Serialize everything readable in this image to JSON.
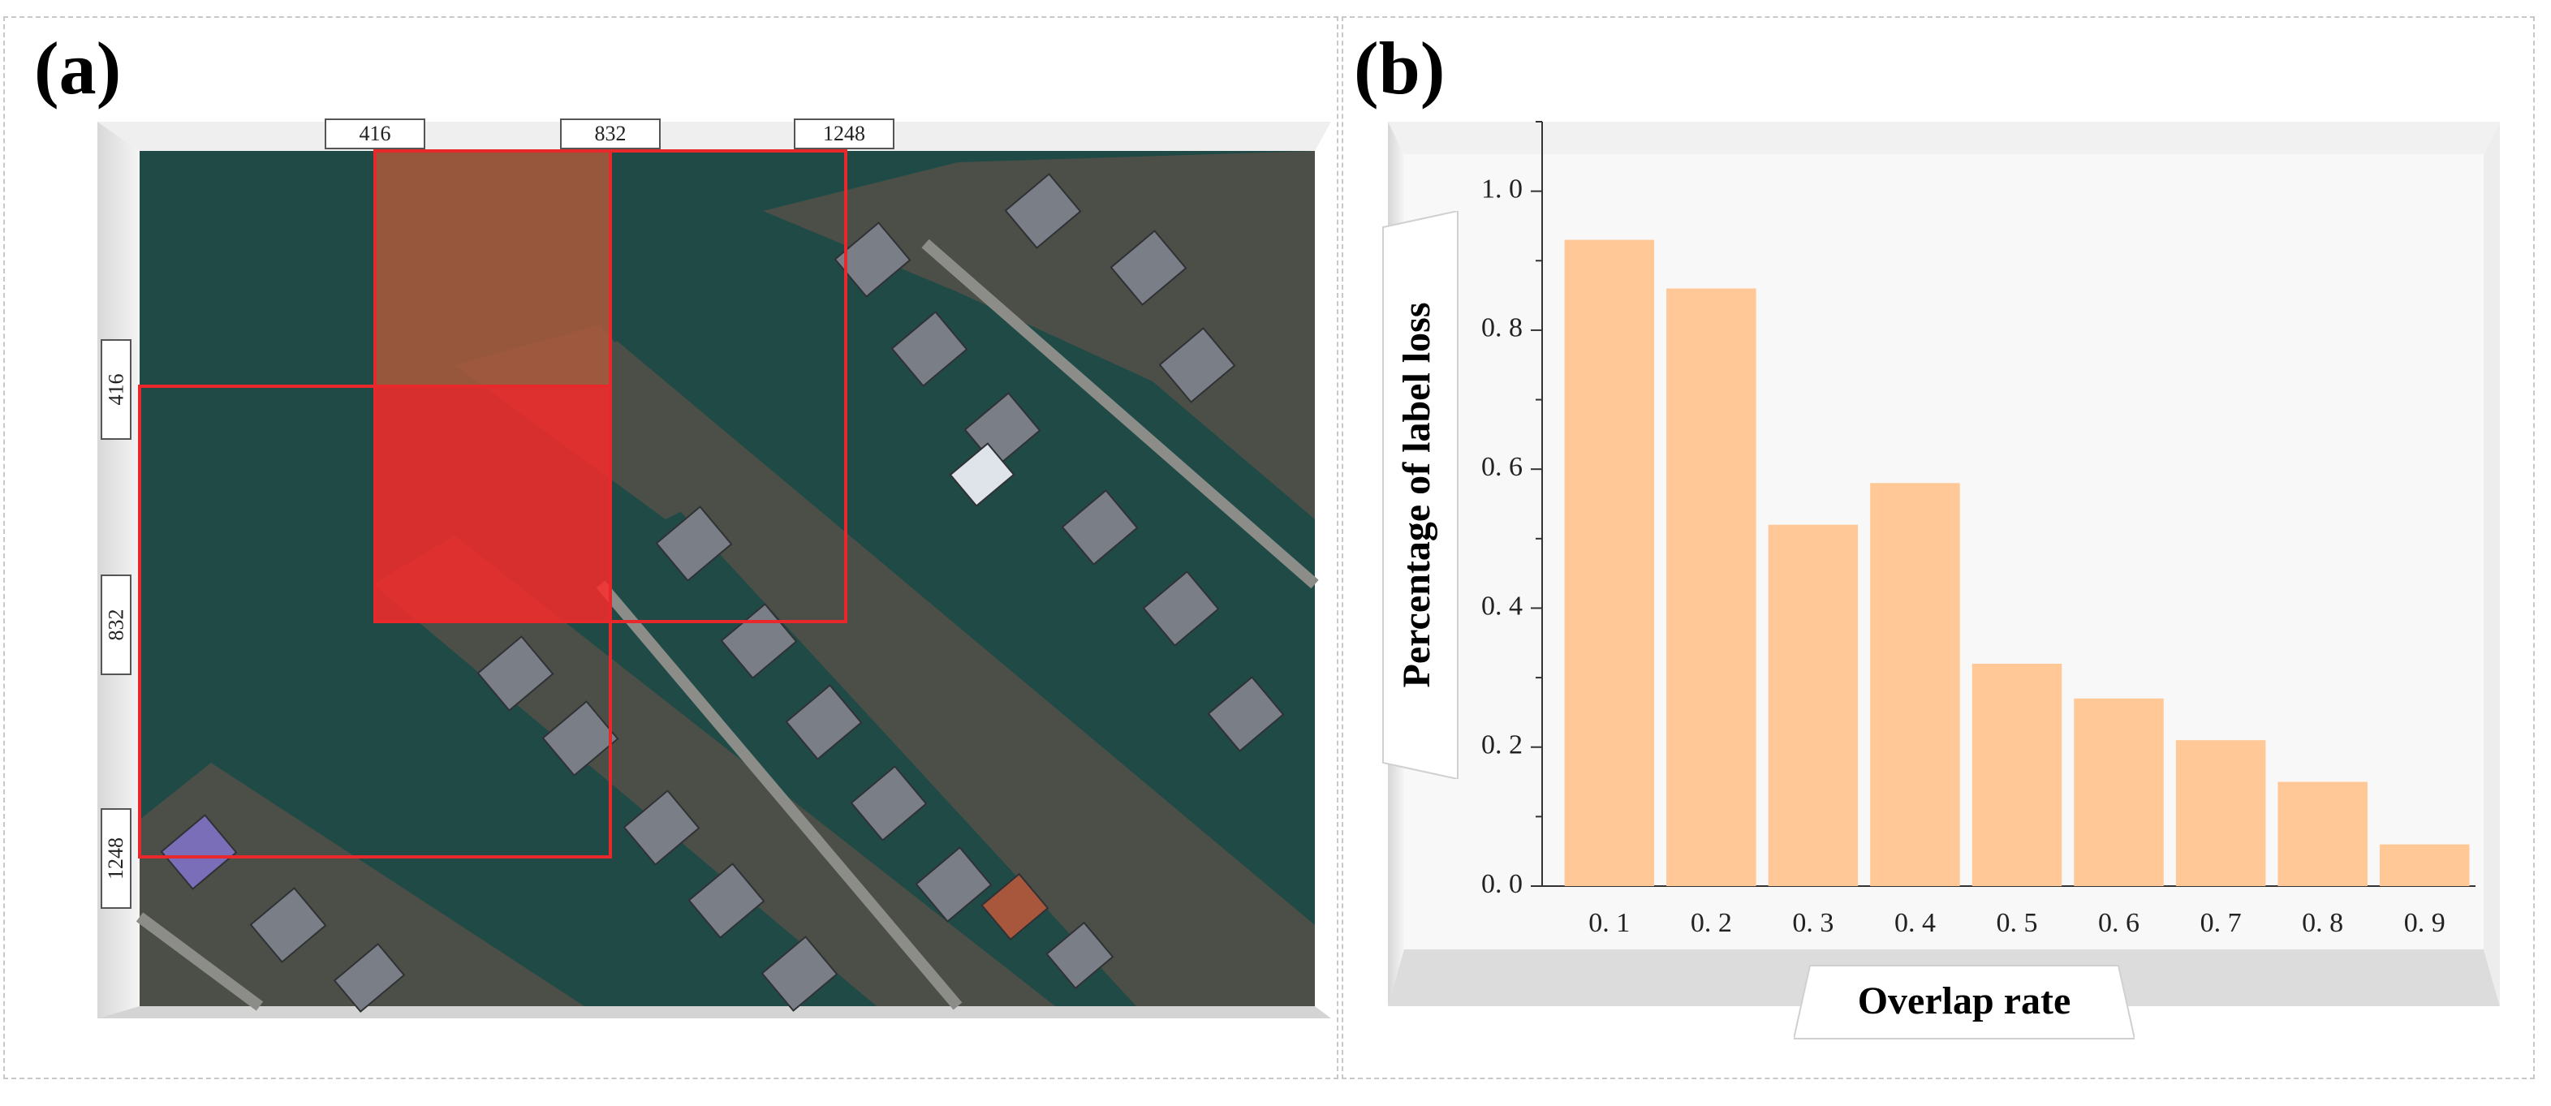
{
  "panels": {
    "a": {
      "letter": "(a)"
    },
    "b": {
      "letter": "(b)"
    }
  },
  "map": {
    "ruler_top": [
      "416",
      "832",
      "1248"
    ],
    "ruler_left": [
      "416",
      "832",
      "1248"
    ],
    "colors": {
      "water": "#1f4a46",
      "grid_red": "#e8282a",
      "overlap_fill": "#ff2a2a",
      "tile_fill": "#b15a3c"
    }
  },
  "chart_data": {
    "type": "bar",
    "categories": [
      "0. 1",
      "0. 2",
      "0. 3",
      "0. 4",
      "0. 5",
      "0. 6",
      "0. 7",
      "0. 8",
      "0. 9"
    ],
    "values": [
      0.93,
      0.86,
      0.52,
      0.58,
      0.32,
      0.27,
      0.21,
      0.15,
      0.06
    ],
    "xlabel": "Overlap rate",
    "ylabel": "Percentage of label loss",
    "ylim": [
      0,
      1.1
    ],
    "yticks": [
      0.0,
      0.2,
      0.4,
      0.6,
      0.8,
      1.0
    ],
    "ytick_labels": [
      "0. 0",
      "0. 2",
      "0. 4",
      "0. 6",
      "0. 8",
      "1. 0"
    ],
    "bar_color": "#ffc896",
    "grid": false
  }
}
